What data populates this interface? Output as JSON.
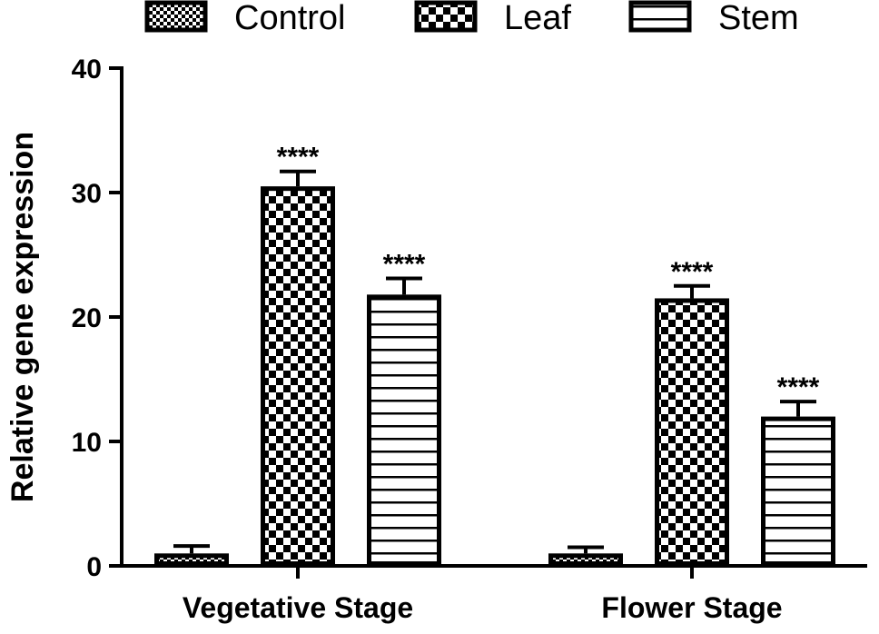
{
  "chart_data": {
    "type": "bar",
    "title": "",
    "xlabel": "",
    "ylabel": "Relative gene expression",
    "ylim": [
      0,
      40
    ],
    "yticks": [
      0,
      10,
      20,
      30,
      40
    ],
    "categories": [
      "Vegetative Stage",
      "Flower Stage"
    ],
    "legend_position": "top",
    "grid": false,
    "series": [
      {
        "name": "Control",
        "pattern": "fine-checker",
        "values": [
          1.0,
          1.0
        ],
        "errors": [
          0.6,
          0.5
        ],
        "significance": [
          "",
          ""
        ]
      },
      {
        "name": "Leaf",
        "pattern": "coarse-checker",
        "values": [
          30.5,
          21.5
        ],
        "errors": [
          1.2,
          1.0
        ],
        "significance": [
          "****",
          "****"
        ]
      },
      {
        "name": "Stem",
        "pattern": "horizontal-lines",
        "values": [
          21.8,
          12.0
        ],
        "errors": [
          1.3,
          1.2
        ],
        "significance": [
          "****",
          "****"
        ]
      }
    ]
  }
}
